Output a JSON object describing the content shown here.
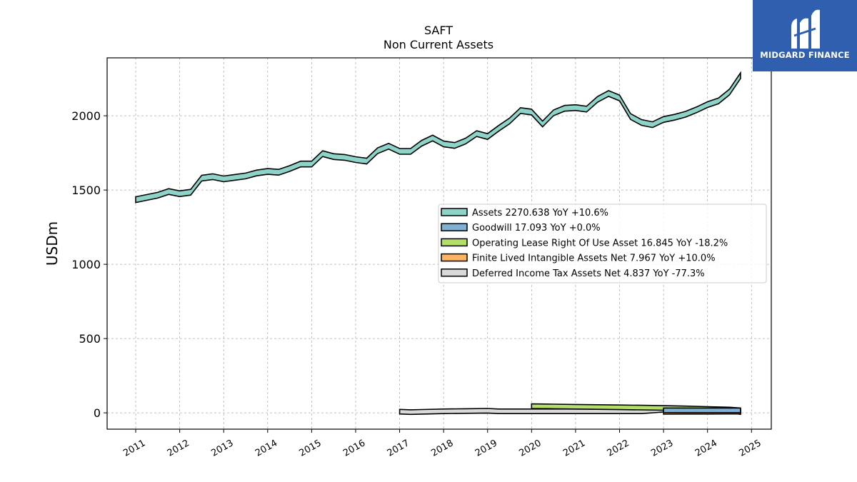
{
  "chart_data": {
    "type": "line",
    "title": "SAFT",
    "subtitle": "Non Current  Assets",
    "ylabel": "USDm",
    "xlabel": "",
    "ylim": [
      -110,
      2390
    ],
    "xlim": [
      2010.35,
      2025.45
    ],
    "yticks": [
      0,
      500,
      1000,
      1500,
      2000
    ],
    "xticks": [
      "2011",
      "2012",
      "2013",
      "2014",
      "2015",
      "2016",
      "2017",
      "2018",
      "2019",
      "2020",
      "2021",
      "2022",
      "2023",
      "2024",
      "2025"
    ],
    "grid": true,
    "legend_position": "center-right",
    "series": [
      {
        "name": "Assets  2270.638 YoY +10.6%",
        "color": "#8dd3c7",
        "x": [
          2011.0,
          2011.25,
          2011.5,
          2011.75,
          2012.0,
          2012.25,
          2012.5,
          2012.75,
          2013.0,
          2013.25,
          2013.5,
          2013.75,
          2014.0,
          2014.25,
          2014.5,
          2014.75,
          2015.0,
          2015.25,
          2015.5,
          2015.75,
          2016.0,
          2016.25,
          2016.5,
          2016.75,
          2017.0,
          2017.25,
          2017.5,
          2017.75,
          2018.0,
          2018.25,
          2018.5,
          2018.75,
          2019.0,
          2019.25,
          2019.5,
          2019.75,
          2020.0,
          2020.25,
          2020.5,
          2020.75,
          2021.0,
          2021.25,
          2021.5,
          2021.75,
          2022.0,
          2022.25,
          2022.5,
          2022.75,
          2023.0,
          2023.25,
          2023.5,
          2023.75,
          2024.0,
          2024.25,
          2024.5,
          2024.75
        ],
        "values": [
          1435,
          1450,
          1465,
          1490,
          1475,
          1485,
          1580,
          1590,
          1575,
          1585,
          1595,
          1615,
          1625,
          1620,
          1645,
          1675,
          1675,
          1745,
          1725,
          1720,
          1705,
          1695,
          1765,
          1795,
          1760,
          1760,
          1815,
          1850,
          1810,
          1800,
          1830,
          1880,
          1860,
          1915,
          1965,
          2035,
          2025,
          1945,
          2020,
          2050,
          2055,
          2045,
          2110,
          2150,
          2120,
          1995,
          1955,
          1940,
          1975,
          1990,
          2010,
          2040,
          2075,
          2100,
          2160,
          2270
        ]
      },
      {
        "name": "Goodwill  17.093 YoY +0.0%",
        "color": "#80b1d3",
        "x": [
          2023.0,
          2023.5,
          2024.0,
          2024.5,
          2024.75
        ],
        "values": [
          17.1,
          17.1,
          17.1,
          17.1,
          17.1
        ]
      },
      {
        "name": "Operating Lease Right Of Use Asset  16.845 YoY -18.2%",
        "color": "#b3de69",
        "x": [
          2020.0,
          2020.5,
          2021.0,
          2021.5,
          2022.0,
          2022.5,
          2023.0,
          2023.5,
          2024.0,
          2024.5,
          2024.75
        ],
        "values": [
          45,
          43,
          41,
          39,
          37,
          35,
          33,
          30,
          26,
          22,
          16.8
        ]
      },
      {
        "name": "Finite Lived Intangible Assets Net  7.967 YoY +10.0%",
        "color": "#fdb462",
        "x": [
          2023.0,
          2023.5,
          2024.0,
          2024.5,
          2024.75
        ],
        "values": [
          6.5,
          7.2,
          7.2,
          7.6,
          8.0
        ]
      },
      {
        "name": "Deferred Income Tax Assets Net  4.837 YoY -77.3%",
        "color": "#d9d9d9",
        "x": [
          2017.0,
          2017.25,
          2017.5,
          2018.0,
          2018.5,
          2019.0,
          2019.25,
          2019.5,
          2020.0,
          2020.5,
          2021.0,
          2021.5,
          2022.0,
          2022.5,
          2023.0,
          2023.25,
          2023.5,
          2023.75,
          2024.0,
          2024.25,
          2024.5,
          2024.75
        ],
        "values": [
          8,
          5,
          7,
          10,
          12,
          14,
          10,
          10,
          10,
          10,
          10,
          10,
          10,
          10,
          21,
          22,
          24,
          24,
          18,
          20,
          18,
          4.8
        ]
      }
    ]
  },
  "logo": {
    "text": "MIDGARD FINANCE",
    "color": "#2f5fae"
  }
}
